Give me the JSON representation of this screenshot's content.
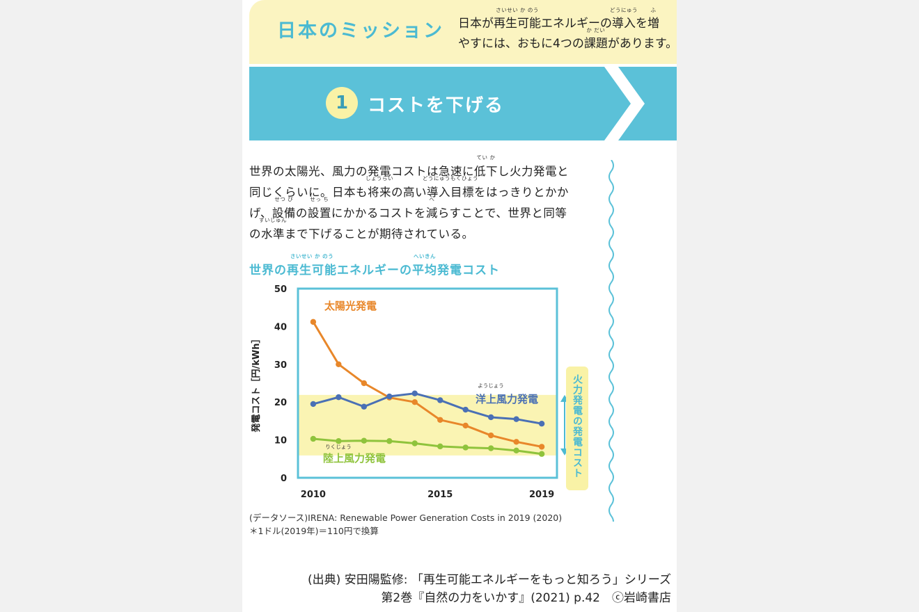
{
  "mission": {
    "title": "日本のミッション",
    "line1_a": "日本が",
    "line1_b": "再生可能",
    "line1_b_ruby": "さいせい か のう",
    "line1_c": "エネルギーの",
    "line1_d": "導入",
    "line1_d_ruby": "どうにゅう",
    "line1_e": "を",
    "line1_f": "増",
    "line1_f_ruby": "ふ",
    "line2_a": "やすには、おもに4つの",
    "line2_b": "課題",
    "line2_b_ruby": "か だい",
    "line2_c": "があります。"
  },
  "step": {
    "number": "1",
    "title": "コストを下げる"
  },
  "body": {
    "l1_a": "世界の太陽光、風力の発電コストは急速に",
    "l1_b": "低下",
    "l1_b_ruby": "てい か",
    "l1_c": "し火力発電と",
    "l2_a": "同じくらいに。日本も",
    "l2_b": "将来",
    "l2_b_ruby": "しょうらい",
    "l2_c": "の高い",
    "l2_d": "導入目標",
    "l2_d_ruby": "どうにゅうもくひょう",
    "l2_e": "をはっきりとかか",
    "l3_a": "げ、",
    "l3_b": "設備",
    "l3_b_ruby": "せつ び",
    "l3_c": "の",
    "l3_d": "設置",
    "l3_d_ruby": "せっ ち",
    "l3_e": "にかかるコストを",
    "l3_f": "減",
    "l3_f_ruby": "へ",
    "l3_g": "らすことで、世界と同等",
    "l4_a": "の",
    "l4_b": "水準",
    "l4_b_ruby": "すいじゅん",
    "l4_c": "まで下げることが期待されている。"
  },
  "chart_title": {
    "a": "世界の",
    "b": "再生可能",
    "b_ruby": "さいせい か のう",
    "c": "エネルギーの",
    "d": "平均",
    "d_ruby": "へいきん",
    "e": "発電コスト"
  },
  "chart_data": {
    "type": "line",
    "title": "世界の再生可能エネルギーの平均発電コスト",
    "ylabel": "発電コスト［円/kWh］",
    "xlabel": "",
    "ylim": [
      0,
      50
    ],
    "yticks": [
      "0",
      "10",
      "20",
      "30",
      "40",
      "50"
    ],
    "xlim": [
      2010,
      2019
    ],
    "xticks": [
      "2010",
      "2015",
      "2019"
    ],
    "x": [
      2010,
      2011,
      2012,
      2013,
      2014,
      2015,
      2016,
      2017,
      2018,
      2019
    ],
    "series": [
      {
        "name": "太陽光発電",
        "color": "#e8872a",
        "values": [
          41.2,
          30.0,
          25.0,
          21.2,
          20.0,
          15.3,
          13.8,
          11.2,
          9.5,
          8.2
        ]
      },
      {
        "name": "洋上風力発電",
        "ruby": "ようじょう",
        "color": "#4a70b5",
        "values": [
          19.5,
          21.3,
          18.8,
          21.5,
          22.3,
          20.5,
          18.0,
          16.0,
          15.5,
          14.3
        ]
      },
      {
        "name": "陸上風力発電",
        "ruby": "りくじょう",
        "color": "#8fc33c",
        "values": [
          10.3,
          9.7,
          9.8,
          9.7,
          9.1,
          8.3,
          8.0,
          7.8,
          7.2,
          6.3
        ]
      }
    ],
    "band": {
      "label": "火力発電の発電コスト",
      "range": [
        5.9,
        21.9
      ],
      "color": "#f9f2a6"
    },
    "grid": false
  },
  "source": {
    "line1": "(データソース)IRENA: Renewable Power Generation Costs in 2019 (2020)",
    "line2": "＊1ドル(2019年)＝110円で換算"
  },
  "credit": {
    "line1": "(出典) 安田陽監修: 「再生可能エネルギーをもっと知ろう」シリーズ",
    "line2": "第2巻『自然の力をいかす』(2021) p.42　ⓒ岩崎書店"
  },
  "colors": {
    "accent": "#4bbad2",
    "yellow": "#fbf4c1",
    "band_yellow": "#f9f2a6",
    "solar": "#e8872a",
    "offshore": "#4a70b5",
    "onshore": "#8fc33c"
  }
}
